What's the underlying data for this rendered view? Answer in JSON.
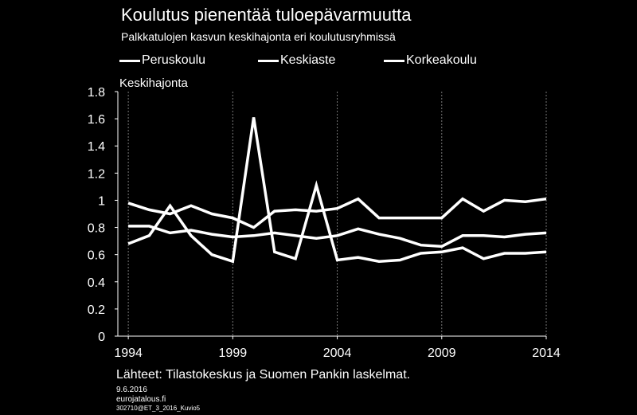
{
  "title": "Koulutus pienentää tuloepävarmuutta",
  "subtitle": "Palkkatulojen kasvun keskihajonta eri koulutusryhmissä",
  "source": "Lähteet: Tilastokeskus ja Suomen Pankin laskelmat.",
  "date": "9.6.2016",
  "site": "eurojatalous.fi",
  "code": "302710@ET_3_2016_Kuvio5",
  "line_color": "#ffffff",
  "chart_data": {
    "type": "line",
    "title": "Koulutus pienentää tuloepävarmuutta",
    "subtitle": "Palkkatulojen kasvun keskihajonta eri koulutusryhmissä",
    "ylabel": "Keskihajonta",
    "xlabel": "",
    "ylim": [
      0,
      1.8
    ],
    "xlim": [
      1993.5,
      2014
    ],
    "yticks": [
      "0",
      "0.2",
      "0.4",
      "0.6",
      "0.8",
      "1",
      "1.2",
      "1.4",
      "1.6",
      "1.8"
    ],
    "yticks_values": [
      0,
      0.2,
      0.4,
      0.6,
      0.8,
      1.0,
      1.2,
      1.4,
      1.6,
      1.8
    ],
    "xticks": [
      "1994",
      "1999",
      "2004",
      "2009",
      "2014"
    ],
    "xticks_values": [
      1994,
      1999,
      2004,
      2009,
      2014
    ],
    "grid": "vertical",
    "legend_position": "top",
    "x": [
      1994,
      1995,
      1996,
      1997,
      1998,
      1999,
      2000,
      2001,
      2002,
      2003,
      2004,
      2005,
      2006,
      2007,
      2008,
      2009,
      2010,
      2011,
      2012,
      2013,
      2014
    ],
    "series": [
      {
        "name": "Peruskoulu",
        "values": [
          0.98,
          0.93,
          0.9,
          0.96,
          0.9,
          0.87,
          0.8,
          0.92,
          0.93,
          0.92,
          0.94,
          1.01,
          0.87,
          0.87,
          0.87,
          0.87,
          1.01,
          0.92,
          1.0,
          0.99,
          1.01
        ]
      },
      {
        "name": "Keskiaste",
        "values": [
          0.81,
          0.81,
          0.76,
          0.78,
          0.75,
          0.73,
          0.74,
          0.76,
          0.74,
          0.72,
          0.74,
          0.79,
          0.75,
          0.72,
          0.67,
          0.66,
          0.74,
          0.74,
          0.73,
          0.75,
          0.76
        ]
      },
      {
        "name": "Korkeakoulu",
        "values": [
          0.68,
          0.74,
          0.96,
          0.74,
          0.6,
          0.55,
          1.61,
          0.62,
          0.57,
          1.11,
          0.56,
          0.58,
          0.55,
          0.56,
          0.61,
          0.62,
          0.65,
          0.57,
          0.61,
          0.61,
          0.62
        ]
      }
    ]
  }
}
